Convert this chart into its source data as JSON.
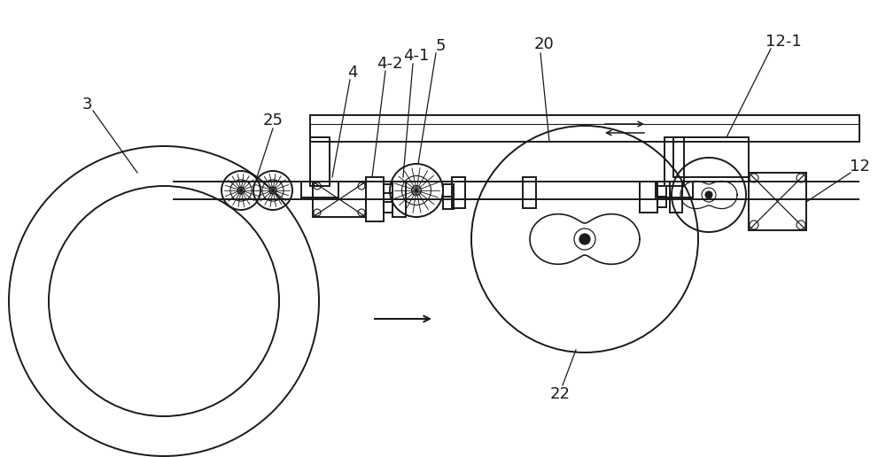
{
  "bg_color": "#ffffff",
  "line_color": "#1a1a1a",
  "figure_width": 10.0,
  "figure_height": 5.16,
  "dpi": 100,
  "xlim": [
    0,
    1000
  ],
  "ylim": [
    0,
    516
  ],
  "label_fontsize": 13
}
